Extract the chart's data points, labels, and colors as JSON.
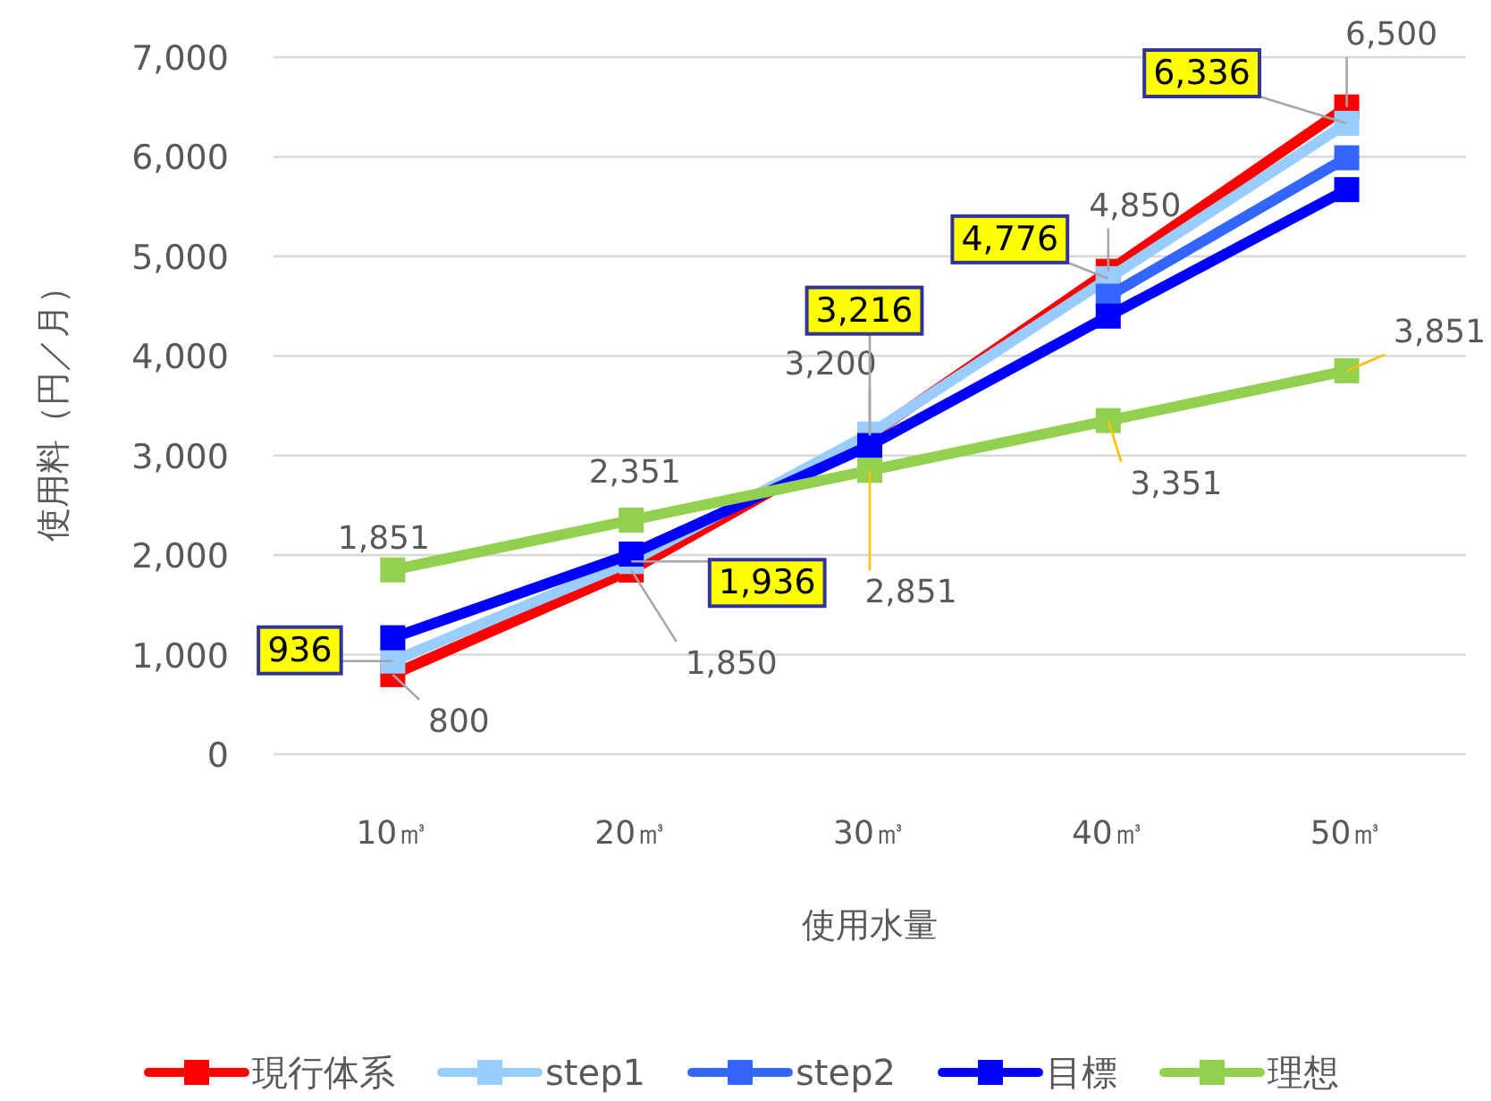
{
  "chart_data": {
    "type": "line",
    "xlabel": "使用水量",
    "ylabel": "使用料（円／月）",
    "categories": [
      "10㎥",
      "20㎥",
      "30㎥",
      "40㎥",
      "50㎥"
    ],
    "ylim": [
      0,
      7000
    ],
    "yticks": [
      0,
      {
        "value": 1000,
        "label": "1,000"
      },
      {
        "value": 2000,
        "label": "2,000"
      },
      {
        "value": 3000,
        "label": "3,000"
      },
      {
        "value": 4000,
        "label": "4,000"
      },
      {
        "value": 5000,
        "label": "5,000"
      },
      {
        "value": 6000,
        "label": "6,000"
      },
      {
        "value": 7000,
        "label": "7,000"
      }
    ],
    "grid": "y",
    "legend": "bottom",
    "marker": "square",
    "line_style": "solid",
    "series": [
      {
        "name": "現行体系",
        "color": "#ff0000",
        "values": [
          800,
          1850,
          3200,
          4850,
          6500
        ],
        "value_labels": [
          "800",
          "1,850",
          "3,200",
          "4,850",
          "6,500"
        ]
      },
      {
        "name": "step1",
        "color": "#99ccff",
        "values": [
          936,
          1936,
          3216,
          4776,
          6336
        ],
        "value_labels": [
          "936",
          "1,936",
          "3,216",
          "4,776",
          "6,336"
        ]
      },
      {
        "name": "step2",
        "color": "#3366ff",
        "values": [
          null,
          null,
          null,
          4600,
          5990
        ]
      },
      {
        "name": "目標",
        "color": "#0000ff",
        "values": [
          1170,
          2010,
          3100,
          4400,
          5670
        ]
      },
      {
        "name": "理想",
        "color": "#92d050",
        "values": [
          1851,
          2351,
          2851,
          3351,
          3851
        ],
        "value_labels": [
          "1,851",
          "2,351",
          "2,851",
          "3,351",
          "3,851"
        ]
      }
    ]
  }
}
